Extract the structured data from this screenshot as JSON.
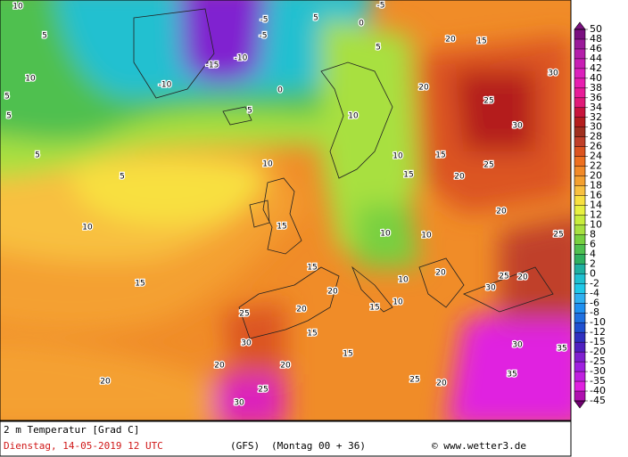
{
  "map_labels": [
    "10",
    "5",
    "5",
    "10",
    "5",
    "5",
    "5",
    "10",
    "15",
    "20",
    "20",
    "25",
    "-15",
    "-10",
    "-10",
    "-5",
    "-5",
    "0",
    "5",
    "10",
    "15",
    "20",
    "-5",
    "5",
    "5",
    "20",
    "15",
    "20",
    "25",
    "30",
    "30",
    "25",
    "20",
    "15",
    "10",
    "10",
    "15",
    "10",
    "10",
    "20",
    "25",
    "25",
    "30",
    "20",
    "20",
    "10",
    "10",
    "15",
    "15",
    "25",
    "20",
    "20",
    "30",
    "25",
    "35",
    "35",
    "30",
    "0",
    "15",
    "20",
    "15",
    "30"
  ],
  "colorbar": {
    "labels": [
      50,
      48,
      46,
      44,
      42,
      40,
      38,
      36,
      34,
      32,
      30,
      28,
      26,
      24,
      22,
      20,
      18,
      16,
      14,
      12,
      10,
      8,
      6,
      4,
      2,
      0,
      -2,
      -4,
      -6,
      -8,
      -10,
      -12,
      -15,
      -20,
      -25,
      -30,
      -35,
      -40,
      -45
    ],
    "colors": [
      "#7a1080",
      "#9a1a9a",
      "#b41eaa",
      "#c81eb4",
      "#dc20bc",
      "#e81eb0",
      "#e81c98",
      "#e01a78",
      "#c8143c",
      "#b41e1e",
      "#a03020",
      "#c0402a",
      "#dc5420",
      "#ee7020",
      "#f28a28",
      "#f4a030",
      "#f8c040",
      "#f8e040",
      "#e8f040",
      "#c8ec3c",
      "#a8e040",
      "#78d040",
      "#50c050",
      "#30b060",
      "#20b0a0",
      "#20c0d0",
      "#20c8e8",
      "#30b0f0",
      "#2090f0",
      "#2070e0",
      "#2050d0",
      "#3030c0",
      "#5020c0",
      "#8020d0",
      "#a020e0",
      "#c020e0",
      "#e020e0",
      "#b010b0",
      "#700070"
    ]
  },
  "footer": {
    "title": "2 m Temperatur [Grad C]",
    "date": "Dienstag, 14-05-2019  12 UTC",
    "model": "(GFS)",
    "run": "(Montag 00 + 36)",
    "credit": "© www.wetter3.de"
  }
}
